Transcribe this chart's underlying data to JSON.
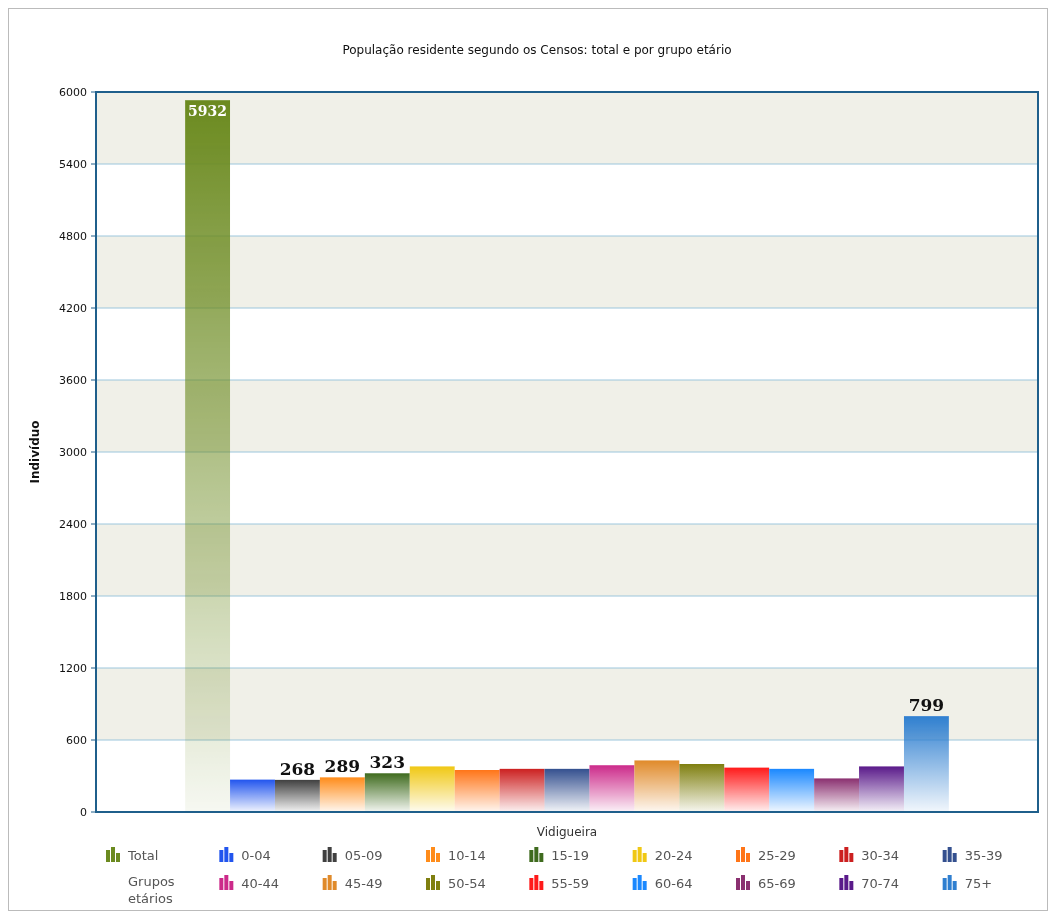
{
  "chart_data": {
    "type": "bar",
    "title": "População residente segundo os Censos: total e por grupo etário",
    "ylabel": "Indivíduo",
    "categories": [
      "Vidigueira"
    ],
    "ylim": [
      0,
      6000
    ],
    "yticks": [
      0,
      600,
      1200,
      1800,
      2400,
      3000,
      3600,
      4200,
      4800,
      5400,
      6000
    ],
    "grid": "y",
    "legend": "bottom",
    "legend_title": "Grupos etários",
    "series": [
      {
        "name": "Total",
        "color": "#6b8a1f",
        "values": [
          5932
        ],
        "value_labels": [
          "5932"
        ]
      },
      {
        "name": "0-04",
        "color": "#2255ee",
        "values": [
          270
        ],
        "value_labels": [
          null
        ]
      },
      {
        "name": "05-09",
        "color": "#404040",
        "values": [
          268
        ],
        "value_labels": [
          "268"
        ]
      },
      {
        "name": "10-14",
        "color": "#ff8c1a",
        "values": [
          289
        ],
        "value_labels": [
          "289"
        ]
      },
      {
        "name": "15-19",
        "color": "#3f6b1e",
        "values": [
          323
        ],
        "value_labels": [
          "323"
        ]
      },
      {
        "name": "20-24",
        "color": "#f0c814",
        "values": [
          380
        ],
        "value_labels": [
          null
        ]
      },
      {
        "name": "25-29",
        "color": "#ff7518",
        "values": [
          350
        ],
        "value_labels": [
          null
        ]
      },
      {
        "name": "30-34",
        "color": "#cc2020",
        "values": [
          360
        ],
        "value_labels": [
          null
        ]
      },
      {
        "name": "35-39",
        "color": "#34508f",
        "values": [
          360
        ],
        "value_labels": [
          null
        ]
      },
      {
        "name": "40-44",
        "color": "#cc2a8a",
        "values": [
          390
        ],
        "value_labels": [
          null
        ]
      },
      {
        "name": "45-49",
        "color": "#e08a2a",
        "values": [
          430
        ],
        "value_labels": [
          null
        ]
      },
      {
        "name": "50-54",
        "color": "#7f7f10",
        "values": [
          400
        ],
        "value_labels": [
          null
        ]
      },
      {
        "name": "55-59",
        "color": "#ff1a1a",
        "values": [
          370
        ],
        "value_labels": [
          null
        ]
      },
      {
        "name": "60-64",
        "color": "#1a88ff",
        "values": [
          360
        ],
        "value_labels": [
          null
        ]
      },
      {
        "name": "65-69",
        "color": "#8a3070",
        "values": [
          280
        ],
        "value_labels": [
          null
        ]
      },
      {
        "name": "70-74",
        "color": "#5a1a8a",
        "values": [
          380
        ],
        "value_labels": [
          null
        ]
      },
      {
        "name": "75+",
        "color": "#2f7fd0",
        "values": [
          799
        ],
        "value_labels": [
          "799"
        ]
      }
    ]
  }
}
